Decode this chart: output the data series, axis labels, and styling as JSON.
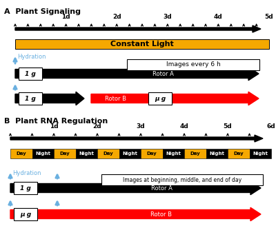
{
  "panel_A_title": "A  Plant Signaling",
  "panel_B_title": "B  Plant RNA Regulation",
  "bg_color": "#ffffff",
  "red_color": "#ff0000",
  "gold_color": "#f5a800",
  "blue_color": "#6ab0e0",
  "day_color": "#f5a800",
  "night_color": "#000000",
  "constant_light_text": "Constant Light",
  "rotor_a_text": "Rotor A",
  "rotor_b_text": "Rotor B",
  "hydration_text": "Hydration",
  "images_6h_text": "Images every 6 h",
  "images_bme_text": "Images at beginning, middle, and end of day",
  "1g_text": "1 g",
  "mug_text": "μ g",
  "panel_A_day_labels": [
    "1d",
    "2d",
    "3d",
    "4d",
    "5d"
  ],
  "panel_B_day_labels": [
    "1d",
    "2d",
    "3d",
    "4d",
    "5d",
    "6d"
  ]
}
